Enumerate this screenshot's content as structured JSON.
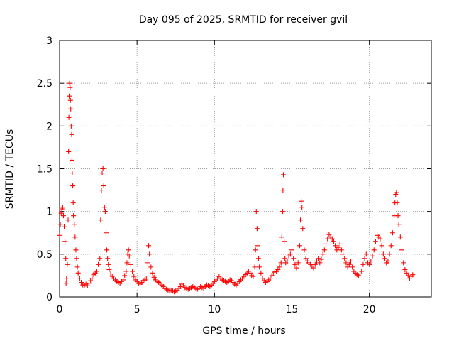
{
  "chart_data": {
    "type": "scatter",
    "title": "Day 095 of 2025, SRMTID for receiver gvil",
    "xlabel": "GPS time / hours",
    "ylabel": "SRMTID / TECUs",
    "xlim": [
      0,
      24
    ],
    "ylim": [
      0,
      3
    ],
    "xticks": [
      0,
      5,
      10,
      15,
      20
    ],
    "xtick_labels": [
      "0",
      "5",
      "10",
      "15",
      "20"
    ],
    "yticks": [
      0,
      0.5,
      1,
      1.5,
      2,
      2.5,
      3
    ],
    "ytick_labels": [
      "0",
      "0.5",
      "1",
      "1.5",
      "2",
      "2.5",
      "3"
    ],
    "grid": true,
    "marker": "+",
    "color": "#ff0000",
    "series": [
      {
        "name": "SRMTID",
        "points": [
          [
            0.0,
            0.72
          ],
          [
            0.05,
            0.85
          ],
          [
            0.1,
            0.98
          ],
          [
            0.15,
            1.03
          ],
          [
            0.2,
            1.05
          ],
          [
            0.25,
            0.95
          ],
          [
            0.3,
            0.82
          ],
          [
            0.35,
            0.65
          ],
          [
            0.4,
            0.45
          ],
          [
            0.42,
            0.16
          ],
          [
            0.45,
            0.22
          ],
          [
            0.5,
            0.38
          ],
          [
            0.55,
            0.9
          ],
          [
            0.58,
            1.7
          ],
          [
            0.6,
            2.1
          ],
          [
            0.62,
            2.35
          ],
          [
            0.65,
            2.5
          ],
          [
            0.68,
            2.45
          ],
          [
            0.7,
            2.3
          ],
          [
            0.72,
            2.2
          ],
          [
            0.75,
            2.0
          ],
          [
            0.78,
            1.9
          ],
          [
            0.8,
            1.6
          ],
          [
            0.82,
            1.45
          ],
          [
            0.85,
            1.3
          ],
          [
            0.88,
            1.1
          ],
          [
            0.9,
            0.95
          ],
          [
            0.95,
            0.85
          ],
          [
            1.0,
            0.7
          ],
          [
            1.05,
            0.55
          ],
          [
            1.1,
            0.45
          ],
          [
            1.15,
            0.35
          ],
          [
            1.2,
            0.28
          ],
          [
            1.3,
            0.22
          ],
          [
            1.4,
            0.17
          ],
          [
            1.5,
            0.14
          ],
          [
            1.6,
            0.13
          ],
          [
            1.7,
            0.15
          ],
          [
            1.8,
            0.13
          ],
          [
            1.9,
            0.16
          ],
          [
            2.0,
            0.19
          ],
          [
            2.1,
            0.22
          ],
          [
            2.2,
            0.26
          ],
          [
            2.3,
            0.28
          ],
          [
            2.4,
            0.3
          ],
          [
            2.5,
            0.38
          ],
          [
            2.6,
            0.45
          ],
          [
            2.65,
            0.9
          ],
          [
            2.7,
            1.25
          ],
          [
            2.75,
            1.45
          ],
          [
            2.8,
            1.5
          ],
          [
            2.85,
            1.3
          ],
          [
            2.9,
            1.05
          ],
          [
            2.95,
            1.0
          ],
          [
            3.0,
            0.75
          ],
          [
            3.05,
            0.55
          ],
          [
            3.1,
            0.45
          ],
          [
            3.15,
            0.38
          ],
          [
            3.2,
            0.32
          ],
          [
            3.3,
            0.27
          ],
          [
            3.4,
            0.24
          ],
          [
            3.5,
            0.22
          ],
          [
            3.6,
            0.2
          ],
          [
            3.7,
            0.18
          ],
          [
            3.8,
            0.17
          ],
          [
            3.9,
            0.16
          ],
          [
            4.0,
            0.18
          ],
          [
            4.1,
            0.2
          ],
          [
            4.2,
            0.25
          ],
          [
            4.3,
            0.3
          ],
          [
            4.35,
            0.4
          ],
          [
            4.4,
            0.5
          ],
          [
            4.45,
            0.55
          ],
          [
            4.5,
            0.48
          ],
          [
            4.6,
            0.38
          ],
          [
            4.7,
            0.3
          ],
          [
            4.8,
            0.24
          ],
          [
            4.9,
            0.2
          ],
          [
            5.0,
            0.18
          ],
          [
            5.1,
            0.16
          ],
          [
            5.2,
            0.15
          ],
          [
            5.3,
            0.17
          ],
          [
            5.4,
            0.19
          ],
          [
            5.5,
            0.2
          ],
          [
            5.6,
            0.22
          ],
          [
            5.7,
            0.4
          ],
          [
            5.75,
            0.6
          ],
          [
            5.8,
            0.5
          ],
          [
            5.9,
            0.35
          ],
          [
            6.0,
            0.28
          ],
          [
            6.1,
            0.23
          ],
          [
            6.2,
            0.2
          ],
          [
            6.3,
            0.18
          ],
          [
            6.4,
            0.17
          ],
          [
            6.5,
            0.16
          ],
          [
            6.6,
            0.14
          ],
          [
            6.7,
            0.12
          ],
          [
            6.8,
            0.1
          ],
          [
            6.9,
            0.09
          ],
          [
            7.0,
            0.08
          ],
          [
            7.1,
            0.07
          ],
          [
            7.2,
            0.08
          ],
          [
            7.3,
            0.07
          ],
          [
            7.4,
            0.06
          ],
          [
            7.5,
            0.07
          ],
          [
            7.6,
            0.08
          ],
          [
            7.7,
            0.1
          ],
          [
            7.8,
            0.12
          ],
          [
            7.9,
            0.15
          ],
          [
            8.0,
            0.13
          ],
          [
            8.1,
            0.11
          ],
          [
            8.2,
            0.1
          ],
          [
            8.3,
            0.09
          ],
          [
            8.4,
            0.1
          ],
          [
            8.5,
            0.11
          ],
          [
            8.6,
            0.12
          ],
          [
            8.7,
            0.11
          ],
          [
            8.8,
            0.1
          ],
          [
            8.9,
            0.09
          ],
          [
            9.0,
            0.1
          ],
          [
            9.1,
            0.12
          ],
          [
            9.2,
            0.11
          ],
          [
            9.3,
            0.1
          ],
          [
            9.4,
            0.12
          ],
          [
            9.5,
            0.14
          ],
          [
            9.6,
            0.13
          ],
          [
            9.7,
            0.12
          ],
          [
            9.8,
            0.14
          ],
          [
            9.9,
            0.16
          ],
          [
            10.0,
            0.18
          ],
          [
            10.1,
            0.2
          ],
          [
            10.2,
            0.22
          ],
          [
            10.3,
            0.24
          ],
          [
            10.4,
            0.22
          ],
          [
            10.5,
            0.2
          ],
          [
            10.6,
            0.19
          ],
          [
            10.7,
            0.18
          ],
          [
            10.8,
            0.17
          ],
          [
            10.9,
            0.18
          ],
          [
            11.0,
            0.2
          ],
          [
            11.1,
            0.19
          ],
          [
            11.2,
            0.17
          ],
          [
            11.3,
            0.15
          ],
          [
            11.4,
            0.14
          ],
          [
            11.5,
            0.16
          ],
          [
            11.6,
            0.18
          ],
          [
            11.7,
            0.2
          ],
          [
            11.8,
            0.22
          ],
          [
            11.9,
            0.24
          ],
          [
            12.0,
            0.26
          ],
          [
            12.1,
            0.28
          ],
          [
            12.2,
            0.3
          ],
          [
            12.3,
            0.28
          ],
          [
            12.4,
            0.25
          ],
          [
            12.5,
            0.24
          ],
          [
            12.6,
            0.35
          ],
          [
            12.65,
            0.55
          ],
          [
            12.7,
            1.0
          ],
          [
            12.75,
            0.8
          ],
          [
            12.8,
            0.6
          ],
          [
            12.85,
            0.45
          ],
          [
            12.9,
            0.35
          ],
          [
            13.0,
            0.28
          ],
          [
            13.1,
            0.22
          ],
          [
            13.2,
            0.19
          ],
          [
            13.3,
            0.17
          ],
          [
            13.4,
            0.18
          ],
          [
            13.5,
            0.2
          ],
          [
            13.6,
            0.22
          ],
          [
            13.7,
            0.25
          ],
          [
            13.8,
            0.27
          ],
          [
            13.9,
            0.29
          ],
          [
            14.0,
            0.3
          ],
          [
            14.1,
            0.32
          ],
          [
            14.2,
            0.35
          ],
          [
            14.3,
            0.4
          ],
          [
            14.35,
            0.7
          ],
          [
            14.4,
            1.0
          ],
          [
            14.42,
            1.25
          ],
          [
            14.45,
            1.43
          ],
          [
            14.5,
            0.65
          ],
          [
            14.55,
            0.45
          ],
          [
            14.6,
            0.4
          ],
          [
            14.7,
            0.42
          ],
          [
            14.8,
            0.48
          ],
          [
            14.9,
            0.5
          ],
          [
            15.0,
            0.55
          ],
          [
            15.1,
            0.45
          ],
          [
            15.2,
            0.38
          ],
          [
            15.3,
            0.34
          ],
          [
            15.4,
            0.4
          ],
          [
            15.5,
            0.6
          ],
          [
            15.55,
            0.9
          ],
          [
            15.6,
            1.12
          ],
          [
            15.65,
            1.05
          ],
          [
            15.7,
            0.8
          ],
          [
            15.8,
            0.55
          ],
          [
            15.9,
            0.45
          ],
          [
            16.0,
            0.42
          ],
          [
            16.1,
            0.4
          ],
          [
            16.2,
            0.38
          ],
          [
            16.3,
            0.36
          ],
          [
            16.4,
            0.34
          ],
          [
            16.5,
            0.38
          ],
          [
            16.6,
            0.42
          ],
          [
            16.7,
            0.45
          ],
          [
            16.8,
            0.4
          ],
          [
            16.9,
            0.44
          ],
          [
            17.0,
            0.5
          ],
          [
            17.1,
            0.55
          ],
          [
            17.2,
            0.62
          ],
          [
            17.3,
            0.68
          ],
          [
            17.4,
            0.73
          ],
          [
            17.5,
            0.7
          ],
          [
            17.6,
            0.68
          ],
          [
            17.7,
            0.65
          ],
          [
            17.8,
            0.6
          ],
          [
            17.9,
            0.55
          ],
          [
            18.0,
            0.58
          ],
          [
            18.1,
            0.62
          ],
          [
            18.2,
            0.55
          ],
          [
            18.3,
            0.5
          ],
          [
            18.4,
            0.45
          ],
          [
            18.5,
            0.4
          ],
          [
            18.6,
            0.35
          ],
          [
            18.7,
            0.38
          ],
          [
            18.8,
            0.42
          ],
          [
            18.9,
            0.35
          ],
          [
            19.0,
            0.3
          ],
          [
            19.1,
            0.28
          ],
          [
            19.2,
            0.26
          ],
          [
            19.3,
            0.25
          ],
          [
            19.4,
            0.27
          ],
          [
            19.5,
            0.3
          ],
          [
            19.6,
            0.38
          ],
          [
            19.7,
            0.45
          ],
          [
            19.8,
            0.5
          ],
          [
            19.9,
            0.4
          ],
          [
            20.0,
            0.38
          ],
          [
            20.1,
            0.42
          ],
          [
            20.2,
            0.48
          ],
          [
            20.3,
            0.55
          ],
          [
            20.4,
            0.65
          ],
          [
            20.5,
            0.72
          ],
          [
            20.6,
            0.7
          ],
          [
            20.7,
            0.68
          ],
          [
            20.8,
            0.6
          ],
          [
            20.9,
            0.5
          ],
          [
            21.0,
            0.45
          ],
          [
            21.1,
            0.4
          ],
          [
            21.2,
            0.42
          ],
          [
            21.3,
            0.5
          ],
          [
            21.4,
            0.6
          ],
          [
            21.5,
            0.75
          ],
          [
            21.6,
            0.95
          ],
          [
            21.65,
            1.1
          ],
          [
            21.7,
            1.2
          ],
          [
            21.75,
            1.22
          ],
          [
            21.8,
            1.1
          ],
          [
            21.85,
            0.95
          ],
          [
            21.9,
            0.85
          ],
          [
            22.0,
            0.7
          ],
          [
            22.1,
            0.55
          ],
          [
            22.2,
            0.4
          ],
          [
            22.3,
            0.32
          ],
          [
            22.4,
            0.28
          ],
          [
            22.5,
            0.25
          ],
          [
            22.6,
            0.22
          ],
          [
            22.7,
            0.24
          ],
          [
            22.8,
            0.26
          ]
        ]
      }
    ]
  }
}
